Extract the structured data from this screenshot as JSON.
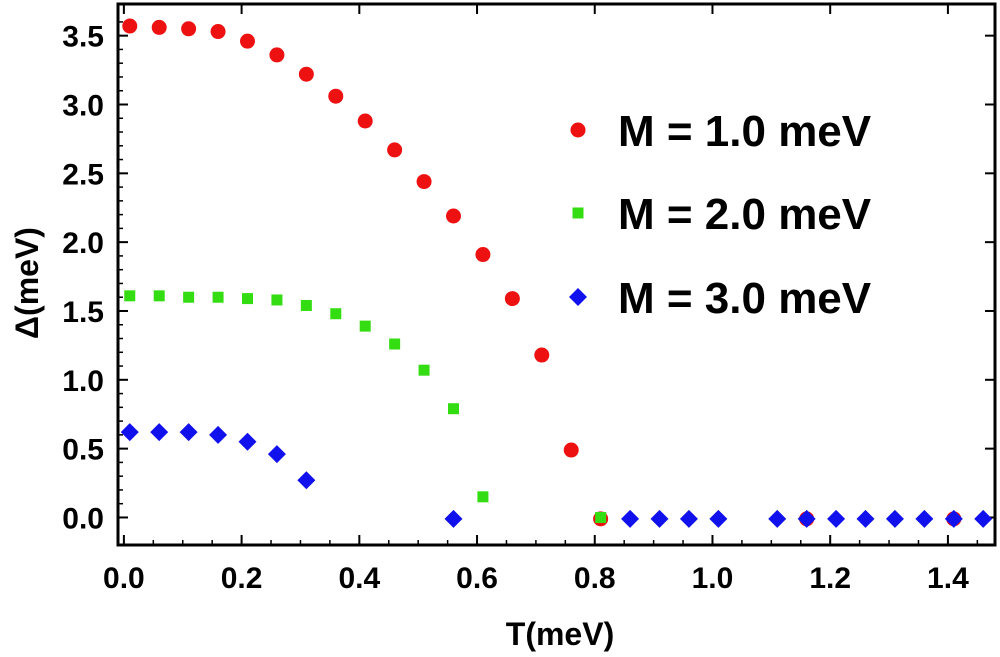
{
  "chart_data": {
    "type": "scatter",
    "title": "",
    "xlabel": "T(meV)",
    "ylabel": "Δ(meV)",
    "xlim": [
      -0.01,
      1.48
    ],
    "ylim": [
      -0.2,
      3.73
    ],
    "xticks": [
      0.0,
      0.2,
      0.4,
      0.6,
      0.8,
      1.0,
      1.2,
      1.4
    ],
    "xtick_labels": [
      "0.0",
      "0.2",
      "0.4",
      "0.6",
      "0.8",
      "1.0",
      "1.2",
      "1.4"
    ],
    "yticks": [
      0.0,
      0.5,
      1.0,
      1.5,
      2.0,
      2.5,
      3.0,
      3.5
    ],
    "ytick_labels": [
      "0.0",
      "0.5",
      "1.0",
      "1.5",
      "2.0",
      "2.5",
      "3.0",
      "3.5"
    ],
    "legend_position": "right",
    "series": [
      {
        "name": "M = 1.0 meV",
        "color": "#ee1111",
        "marker": "circle",
        "x": [
          0.01,
          0.06,
          0.11,
          0.16,
          0.21,
          0.26,
          0.31,
          0.36,
          0.41,
          0.46,
          0.51,
          0.56,
          0.61,
          0.66,
          0.71,
          0.76,
          0.81,
          1.16,
          1.41
        ],
        "y": [
          3.57,
          3.56,
          3.55,
          3.53,
          3.46,
          3.36,
          3.22,
          3.06,
          2.88,
          2.67,
          2.44,
          2.19,
          1.91,
          1.59,
          1.18,
          0.49,
          -0.01,
          -0.01,
          -0.01
        ]
      },
      {
        "name": "M = 2.0 meV",
        "color": "#33dd11",
        "marker": "square",
        "x": [
          0.01,
          0.06,
          0.11,
          0.16,
          0.21,
          0.26,
          0.31,
          0.36,
          0.41,
          0.46,
          0.51,
          0.56,
          0.61,
          0.81
        ],
        "y": [
          1.61,
          1.61,
          1.6,
          1.6,
          1.59,
          1.58,
          1.54,
          1.48,
          1.39,
          1.26,
          1.07,
          0.79,
          0.15,
          0.0
        ]
      },
      {
        "name": "M = 3.0 meV",
        "color": "#1111ee",
        "marker": "diamond",
        "x": [
          0.01,
          0.06,
          0.11,
          0.16,
          0.21,
          0.26,
          0.31,
          0.56,
          0.86,
          0.91,
          0.96,
          1.01,
          1.11,
          1.16,
          1.21,
          1.26,
          1.31,
          1.36,
          1.41,
          1.46
        ],
        "y": [
          0.62,
          0.62,
          0.62,
          0.6,
          0.55,
          0.46,
          0.27,
          -0.01,
          -0.01,
          -0.01,
          -0.01,
          -0.01,
          -0.01,
          -0.01,
          -0.01,
          -0.01,
          -0.01,
          -0.01,
          -0.01,
          -0.01
        ]
      }
    ]
  }
}
